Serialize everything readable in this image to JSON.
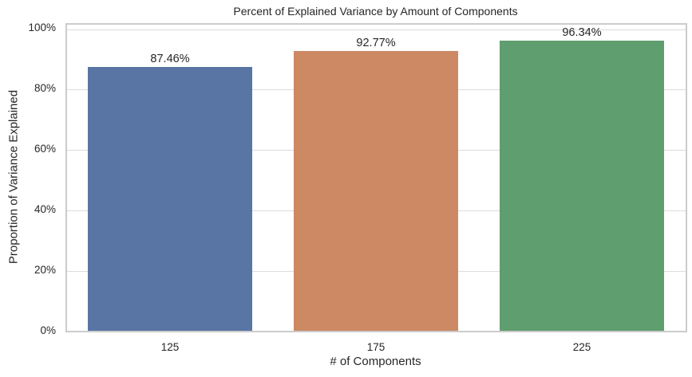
{
  "chart_data": {
    "type": "bar",
    "title": "Percent of Explained Variance by Amount of Components",
    "xlabel": "# of Components",
    "ylabel": "Proportion of Variance Explained",
    "categories": [
      "125",
      "175",
      "225"
    ],
    "values": [
      87.46,
      92.77,
      96.34
    ],
    "value_labels": [
      "87.46%",
      "92.77%",
      "96.34%"
    ],
    "colors": [
      "#5975a4",
      "#cc8963",
      "#5f9e6e"
    ],
    "ylim": [
      0,
      100
    ],
    "yticks": [
      "0%",
      "20%",
      "40%",
      "60%",
      "80%",
      "100%"
    ],
    "grid": "horizontal",
    "legend": null
  }
}
